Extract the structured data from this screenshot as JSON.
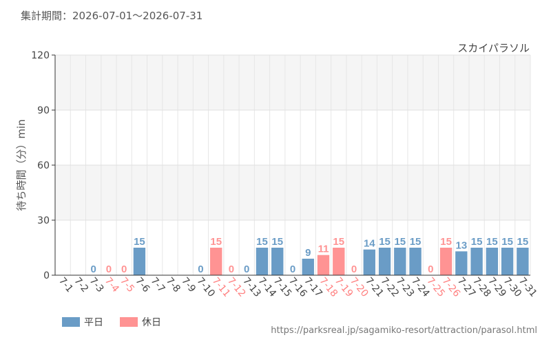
{
  "period_text": "集計期間：2026-07-01～2026-07-31",
  "source_url": "https://parksreal.jp/sagamiko-resort/attraction/parasol.html",
  "chart_data": {
    "type": "bar",
    "title": "スカイパラソル",
    "ylabel": "待ち時間（分）min",
    "xlabel": "",
    "ylim": [
      0,
      120
    ],
    "yticks": [
      0,
      30,
      60,
      90,
      120
    ],
    "grid": true,
    "legend_position": "bottom-left",
    "categories": [
      "7-1",
      "7-2",
      "7-3",
      "7-4",
      "7-5",
      "7-6",
      "7-7",
      "7-8",
      "7-9",
      "7-10",
      "7-11",
      "7-12",
      "7-13",
      "7-14",
      "7-15",
      "7-16",
      "7-17",
      "7-18",
      "7-19",
      "7-20",
      "7-21",
      "7-22",
      "7-23",
      "7-24",
      "7-25",
      "7-26",
      "7-27",
      "7-28",
      "7-29",
      "7-30",
      "7-31"
    ],
    "values": [
      null,
      null,
      0,
      0,
      0,
      15,
      null,
      null,
      null,
      0,
      15,
      0,
      0,
      15,
      15,
      0,
      9,
      11,
      15,
      0,
      14,
      15,
      15,
      15,
      0,
      15,
      13,
      15,
      15,
      15,
      15
    ],
    "day_types": [
      "weekday",
      "weekday",
      "weekday",
      "holiday",
      "holiday",
      "weekday",
      "weekday",
      "weekday",
      "weekday",
      "weekday",
      "holiday",
      "holiday",
      "weekday",
      "weekday",
      "weekday",
      "weekday",
      "weekday",
      "holiday",
      "holiday",
      "holiday",
      "weekday",
      "weekday",
      "weekday",
      "weekday",
      "holiday",
      "holiday",
      "weekday",
      "weekday",
      "weekday",
      "weekday",
      "weekday"
    ],
    "series": [
      {
        "key": "weekday",
        "name": "平日",
        "color": "#6a9cc6"
      },
      {
        "key": "holiday",
        "name": "休日",
        "color": "#ff9393"
      }
    ]
  }
}
